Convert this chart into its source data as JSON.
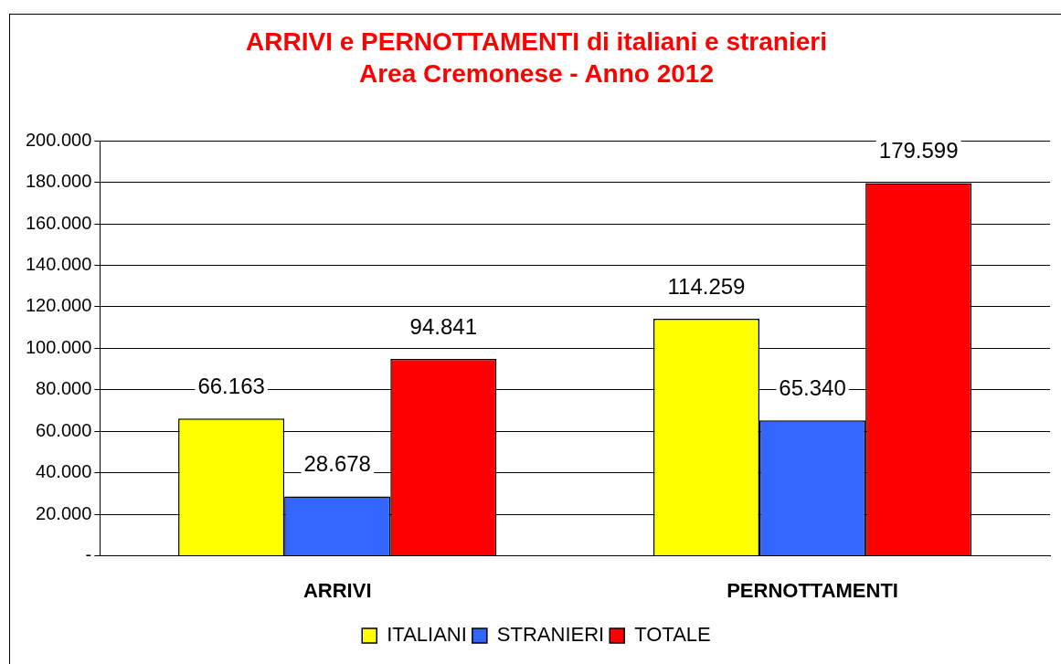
{
  "chart_data": {
    "type": "bar",
    "title": "ARRIVI e PERNOTTAMENTI di italiani e stranieri",
    "subtitle": "Area Cremonese - Anno 2012",
    "categories": [
      "ARRIVI",
      "PERNOTTAMENTI"
    ],
    "series": [
      {
        "name": "ITALIANI",
        "color": "#ffff00",
        "values": [
          66163,
          114259
        ],
        "value_labels": [
          "66.163",
          "114.259"
        ]
      },
      {
        "name": "STRANIERI",
        "color": "#3366ff",
        "values": [
          28678,
          65340
        ],
        "value_labels": [
          "28.678",
          "65.340"
        ]
      },
      {
        "name": "TOTALE",
        "color": "#ff0000",
        "values": [
          94841,
          179599
        ],
        "value_labels": [
          "94.841",
          "179.599"
        ]
      }
    ],
    "ylim": [
      0,
      200000
    ],
    "yticks": [
      {
        "value": 0,
        "label": "-"
      },
      {
        "value": 20000,
        "label": "20.000"
      },
      {
        "value": 40000,
        "label": "40.000"
      },
      {
        "value": 60000,
        "label": "60.000"
      },
      {
        "value": 80000,
        "label": "80.000"
      },
      {
        "value": 100000,
        "label": "100.000"
      },
      {
        "value": 120000,
        "label": "120.000"
      },
      {
        "value": 140000,
        "label": "140.000"
      },
      {
        "value": 160000,
        "label": "160.000"
      },
      {
        "value": 180000,
        "label": "180.000"
      },
      {
        "value": 200000,
        "label": "200.000"
      }
    ],
    "grid": "y",
    "legend": "bottom"
  }
}
